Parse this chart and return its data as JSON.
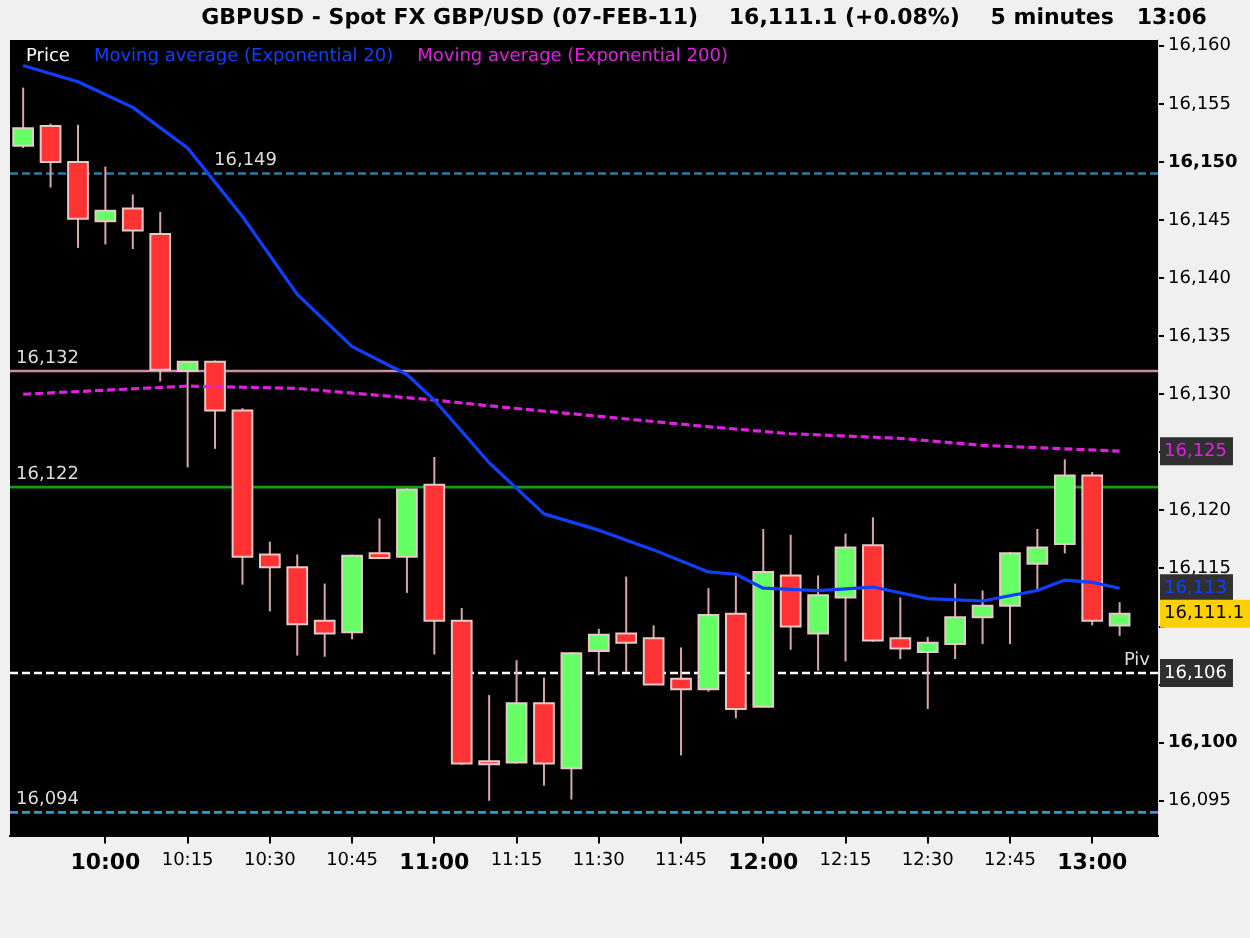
{
  "chart_data": {
    "type": "candlestick",
    "title": "GBPUSD - Spot FX GBP/USD (07-FEB-11)    16,111.1 (+0.08%)    5 minutes   13:06",
    "legend_title": "Price",
    "legend": "top left",
    "grid": false,
    "x": [
      9.75,
      9.8333,
      9.9167,
      10,
      10.0833,
      10.1667,
      10.25,
      10.3333,
      10.4167,
      10.5,
      10.5833,
      10.6667,
      10.75,
      10.8333,
      10.9167,
      11,
      11.0833,
      11.1667,
      11.25,
      11.3333,
      11.4167,
      11.5,
      11.5833,
      11.6667,
      11.75,
      11.8333,
      11.9167,
      12,
      12.0833,
      12.1667,
      12.25,
      12.3333,
      12.4167,
      12.5,
      12.5833,
      12.6667,
      12.75,
      12.8333,
      12.9167,
      13,
      13.0833
    ],
    "ohlc": [
      [
        16151.4,
        16156.4,
        16151.2,
        16152.9
      ],
      [
        16153.1,
        16153.3,
        16147.8,
        16150.0
      ],
      [
        16150.0,
        16153.2,
        16142.6,
        16145.1
      ],
      [
        16144.9,
        16149.6,
        16142.9,
        16145.8
      ],
      [
        16146.0,
        16147.2,
        16142.5,
        16144.1
      ],
      [
        16143.8,
        16145.7,
        16131.1,
        16132.1
      ],
      [
        16132.0,
        16132.8,
        16123.7,
        16132.8
      ],
      [
        16132.8,
        16132.9,
        16125.3,
        16128.6
      ],
      [
        16128.6,
        16128.8,
        16113.6,
        16116.0
      ],
      [
        16116.2,
        16117.3,
        16111.3,
        16115.1
      ],
      [
        16115.1,
        16116.2,
        16107.5,
        16110.2
      ],
      [
        16110.5,
        16113.7,
        16107.4,
        16109.4
      ],
      [
        16109.5,
        16116.2,
        16108.9,
        16116.1
      ],
      [
        16116.3,
        16119.3,
        16115.8,
        16115.9
      ],
      [
        16116.0,
        16121.9,
        16112.9,
        16121.8
      ],
      [
        16122.2,
        16124.6,
        16107.6,
        16110.5
      ],
      [
        16110.5,
        16111.6,
        16098.1,
        16098.2
      ],
      [
        16098.4,
        16104.1,
        16095.0,
        16098.2
      ],
      [
        16098.3,
        16107.1,
        16098.2,
        16103.4
      ],
      [
        16103.4,
        16105.6,
        16096.3,
        16098.2
      ],
      [
        16097.8,
        16107.8,
        16095.1,
        16107.7
      ],
      [
        16107.9,
        16109.8,
        16105.8,
        16109.3
      ],
      [
        16109.4,
        16114.3,
        16106.1,
        16108.6
      ],
      [
        16109.0,
        16110.1,
        16105.0,
        16105.0
      ],
      [
        16105.5,
        16108.2,
        16098.9,
        16104.6
      ],
      [
        16104.6,
        16113.3,
        16104.4,
        16111.0
      ],
      [
        16111.1,
        16114.4,
        16102.1,
        16102.9
      ],
      [
        16103.1,
        16118.4,
        16103.1,
        16114.7
      ],
      [
        16114.4,
        16117.9,
        16108.0,
        16110.0
      ],
      [
        16109.4,
        16114.4,
        16106.2,
        16112.7
      ],
      [
        16112.5,
        16118.0,
        16107.0,
        16116.8
      ],
      [
        16117.0,
        16119.4,
        16108.7,
        16108.8
      ],
      [
        16109.0,
        16112.5,
        16107.2,
        16108.1
      ],
      [
        16107.8,
        16109.1,
        16102.9,
        16108.6
      ],
      [
        16108.5,
        16113.7,
        16107.2,
        16110.8
      ],
      [
        16110.8,
        16113.1,
        16108.5,
        16111.8
      ],
      [
        16111.8,
        16116.4,
        16108.5,
        16116.3
      ],
      [
        16115.4,
        16118.4,
        16113.0,
        16116.8
      ],
      [
        16117.1,
        16124.4,
        16116.3,
        16123.0
      ],
      [
        16123.0,
        16123.3,
        16110.1,
        16110.5
      ],
      [
        16110.1,
        16112.1,
        16109.2,
        16111.1
      ]
    ],
    "series": [
      {
        "name": "Moving average (Exponential 20)",
        "type": "line",
        "color": "#1040ff",
        "marker": "none",
        "line_style": "solid",
        "x": [
          9.75,
          9.9167,
          10.0833,
          10.25,
          10.4167,
          10.5833,
          10.75,
          10.9167,
          11,
          11.1667,
          11.3333,
          11.5,
          11.6667,
          11.8333,
          11.9167,
          12,
          12.1667,
          12.3333,
          12.5,
          12.6667,
          12.8333,
          12.9167,
          13,
          13.0833
        ],
        "values": [
          16158.3,
          16156.9,
          16154.7,
          16151.2,
          16145.3,
          16138.6,
          16134.1,
          16131.7,
          16129.5,
          16124.1,
          16119.7,
          16118.3,
          16116.6,
          16114.7,
          16114.5,
          16113.3,
          16113.1,
          16113.4,
          16112.4,
          16112.2,
          16113.1,
          16114.0,
          16113.8,
          16113.3
        ]
      },
      {
        "name": "Moving average (Exponential 200)",
        "type": "line",
        "color": "#e020e0",
        "marker": "none",
        "line_style": "dashed",
        "x": [
          9.75,
          10.25,
          10.5833,
          11,
          11.1667,
          11.5,
          11.8333,
          12.0833,
          12.4167,
          12.6667,
          13.0833
        ],
        "values": [
          16130.0,
          16130.7,
          16130.5,
          16129.5,
          16129.0,
          16128.1,
          16127.2,
          16126.6,
          16126.2,
          16125.6,
          16125.1
        ]
      }
    ],
    "ref_lines": [
      {
        "axis": "y",
        "value": 16149,
        "label": "16,149",
        "color": "#2a7fa8",
        "line_style": "dashed"
      },
      {
        "axis": "y",
        "value": 16132,
        "label": "16,132",
        "color": "#c890a0",
        "line_style": "solid"
      },
      {
        "axis": "y",
        "value": 16122,
        "label": "16,122",
        "color": "#10a010",
        "line_style": "solid"
      },
      {
        "axis": "y",
        "value": 16094,
        "label": "16,094",
        "color": "#2a9fd8",
        "line_style": "dashed"
      },
      {
        "axis": "y",
        "value": 16106,
        "label": "Piv",
        "color": "#ffffff",
        "line_style": "dashed"
      }
    ],
    "annotations": [
      "16,125",
      "16,113",
      "16,111.1",
      "16,106"
    ],
    "xlim": [
      9.71,
      13.2
    ],
    "xticks": [
      {
        "value": 10,
        "label": "10:00"
      },
      {
        "value": 10.25,
        "label": "10:15"
      },
      {
        "value": 10.5,
        "label": "10:30"
      },
      {
        "value": 10.75,
        "label": "10:45"
      },
      {
        "value": 11,
        "label": "11:00"
      },
      {
        "value": 11.25,
        "label": "11:15"
      },
      {
        "value": 11.5,
        "label": "11:30"
      },
      {
        "value": 11.75,
        "label": "11:45"
      },
      {
        "value": 12,
        "label": "12:00"
      },
      {
        "value": 12.25,
        "label": "12:15"
      },
      {
        "value": 12.5,
        "label": "12:30"
      },
      {
        "value": 12.75,
        "label": "12:45"
      },
      {
        "value": 13,
        "label": "13:00"
      }
    ],
    "ylim": [
      16092,
      16160.5
    ],
    "yticks": [
      {
        "value": 16095,
        "label": "16,095"
      },
      {
        "value": 16100,
        "label": "16,100"
      },
      {
        "value": 16105,
        "label": null
      },
      {
        "value": 16110,
        "label": null
      },
      {
        "value": 16115,
        "label": "16,115"
      },
      {
        "value": 16120,
        "label": "16,120"
      },
      {
        "value": 16125,
        "label": null
      },
      {
        "value": 16130,
        "label": "16,130"
      },
      {
        "value": 16135,
        "label": "16,135"
      },
      {
        "value": 16140,
        "label": "16,140"
      },
      {
        "value": 16145,
        "label": "16,145"
      },
      {
        "value": 16150,
        "label": "16,150"
      },
      {
        "value": 16155,
        "label": "16,155"
      },
      {
        "value": 16160,
        "label": "16,160"
      }
    ]
  }
}
